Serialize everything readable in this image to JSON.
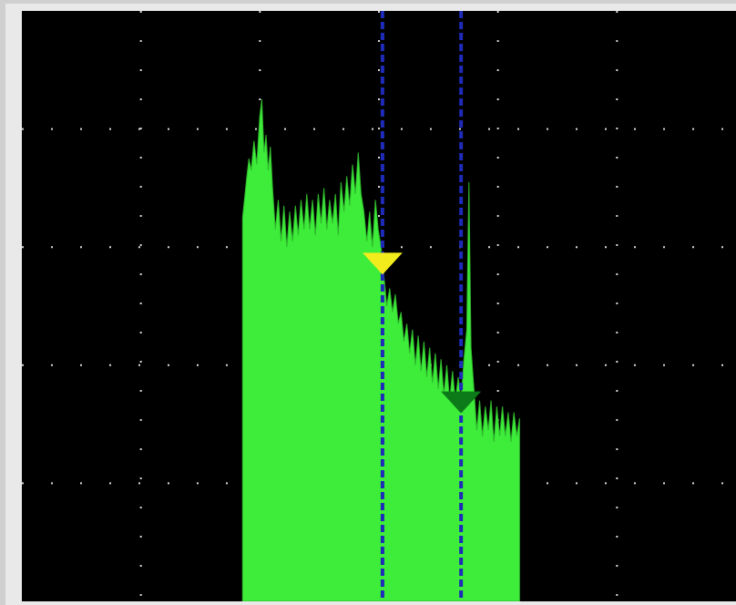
{
  "window": {
    "type": "spectrum-analyzer-display"
  },
  "display": {
    "background": "#000000",
    "trace_color": "#3ded3a",
    "grid_color": "#ffffff",
    "marker_line_color": "#1e2bb8",
    "grid_divisions": {
      "x": 6,
      "y": 5
    }
  },
  "markers": [
    {
      "name": "marker-1",
      "color": "#f2ec1c",
      "position_fraction": 0.505
    },
    {
      "name": "marker-2",
      "color": "#0c7a18",
      "position_fraction": 0.615
    }
  ],
  "chart_data": {
    "type": "area",
    "title": "",
    "xlabel": "",
    "ylabel": "",
    "xlim": [
      0,
      1
    ],
    "ylim": [
      0,
      1
    ],
    "grid": true,
    "series": [
      {
        "values": [
          [
            0.309,
            0.65
          ],
          [
            0.315,
            0.72
          ],
          [
            0.318,
            0.75
          ],
          [
            0.321,
            0.73
          ],
          [
            0.325,
            0.78
          ],
          [
            0.329,
            0.74
          ],
          [
            0.333,
            0.82
          ],
          [
            0.336,
            0.85
          ],
          [
            0.339,
            0.76
          ],
          [
            0.342,
            0.79
          ],
          [
            0.345,
            0.73
          ],
          [
            0.348,
            0.77
          ],
          [
            0.351,
            0.7
          ],
          [
            0.355,
            0.63
          ],
          [
            0.359,
            0.68
          ],
          [
            0.363,
            0.61
          ],
          [
            0.367,
            0.67
          ],
          [
            0.371,
            0.6
          ],
          [
            0.375,
            0.66
          ],
          [
            0.379,
            0.61
          ],
          [
            0.383,
            0.67
          ],
          [
            0.387,
            0.62
          ],
          [
            0.391,
            0.68
          ],
          [
            0.395,
            0.63
          ],
          [
            0.399,
            0.69
          ],
          [
            0.403,
            0.63
          ],
          [
            0.407,
            0.68
          ],
          [
            0.411,
            0.62
          ],
          [
            0.415,
            0.69
          ],
          [
            0.419,
            0.64
          ],
          [
            0.423,
            0.7
          ],
          [
            0.427,
            0.63
          ],
          [
            0.431,
            0.68
          ],
          [
            0.435,
            0.64
          ],
          [
            0.439,
            0.69
          ],
          [
            0.443,
            0.62
          ],
          [
            0.447,
            0.71
          ],
          [
            0.451,
            0.66
          ],
          [
            0.455,
            0.72
          ],
          [
            0.459,
            0.67
          ],
          [
            0.463,
            0.74
          ],
          [
            0.467,
            0.69
          ],
          [
            0.471,
            0.76
          ],
          [
            0.475,
            0.69
          ],
          [
            0.479,
            0.66
          ],
          [
            0.483,
            0.61
          ],
          [
            0.487,
            0.66
          ],
          [
            0.491,
            0.6
          ],
          [
            0.495,
            0.68
          ],
          [
            0.499,
            0.63
          ],
          [
            0.503,
            0.6
          ],
          [
            0.507,
            0.55
          ],
          [
            0.511,
            0.5
          ],
          [
            0.515,
            0.53
          ],
          [
            0.519,
            0.49
          ],
          [
            0.523,
            0.52
          ],
          [
            0.527,
            0.47
          ],
          [
            0.531,
            0.49
          ],
          [
            0.535,
            0.44
          ],
          [
            0.539,
            0.47
          ],
          [
            0.543,
            0.42
          ],
          [
            0.547,
            0.46
          ],
          [
            0.551,
            0.4
          ],
          [
            0.555,
            0.45
          ],
          [
            0.559,
            0.39
          ],
          [
            0.563,
            0.44
          ],
          [
            0.567,
            0.38
          ],
          [
            0.571,
            0.43
          ],
          [
            0.575,
            0.37
          ],
          [
            0.579,
            0.42
          ],
          [
            0.583,
            0.36
          ],
          [
            0.587,
            0.41
          ],
          [
            0.591,
            0.35
          ],
          [
            0.595,
            0.4
          ],
          [
            0.599,
            0.34
          ],
          [
            0.603,
            0.39
          ],
          [
            0.607,
            0.34
          ],
          [
            0.611,
            0.38
          ],
          [
            0.615,
            0.34
          ],
          [
            0.619,
            0.41
          ],
          [
            0.623,
            0.46
          ],
          [
            0.626,
            0.71
          ],
          [
            0.629,
            0.43
          ],
          [
            0.633,
            0.36
          ],
          [
            0.637,
            0.29
          ],
          [
            0.641,
            0.34
          ],
          [
            0.645,
            0.28
          ],
          [
            0.649,
            0.33
          ],
          [
            0.653,
            0.29
          ],
          [
            0.657,
            0.34
          ],
          [
            0.661,
            0.27
          ],
          [
            0.665,
            0.33
          ],
          [
            0.669,
            0.28
          ],
          [
            0.673,
            0.33
          ],
          [
            0.677,
            0.28
          ],
          [
            0.681,
            0.32
          ],
          [
            0.685,
            0.27
          ],
          [
            0.689,
            0.32
          ],
          [
            0.693,
            0.28
          ],
          [
            0.697,
            0.31
          ]
        ]
      }
    ]
  }
}
